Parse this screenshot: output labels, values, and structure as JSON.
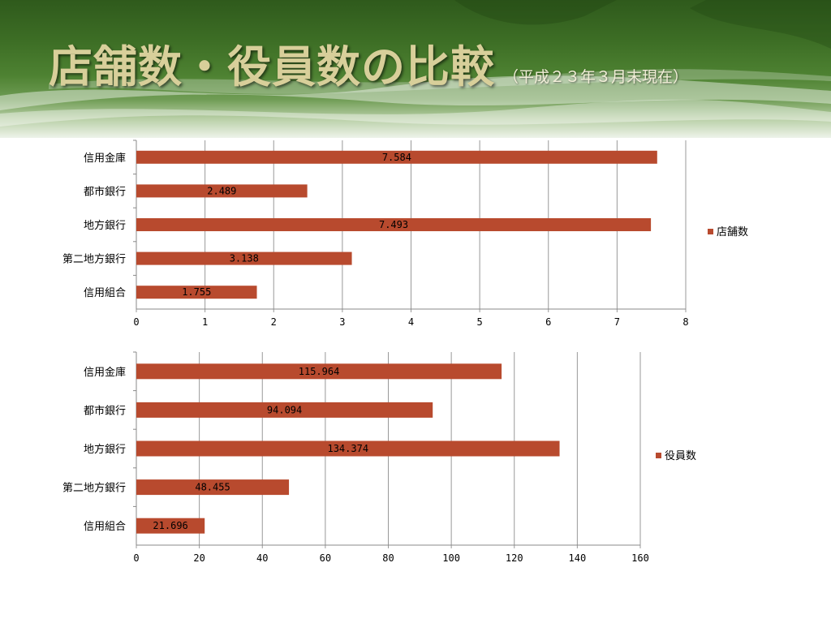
{
  "header": {
    "title": "店舗数・役員数の比較",
    "subtitle": "（平成２３年３月末現在）"
  },
  "chart_data": [
    {
      "type": "bar",
      "orientation": "horizontal",
      "categories": [
        "信用金庫",
        "都市銀行",
        "地方銀行",
        "第二地方銀行",
        "信用組合"
      ],
      "series": [
        {
          "name": "店舗数",
          "values": [
            7.584,
            2.489,
            7.493,
            3.138,
            1.755
          ],
          "labels": [
            "7.584",
            "2.489",
            "7.493",
            "3.138",
            "1.755"
          ]
        }
      ],
      "xlim": [
        0,
        8
      ],
      "ticks": [
        "0",
        "1",
        "2",
        "3",
        "4",
        "5",
        "6",
        "7",
        "8"
      ],
      "grid": "vertical",
      "legend": "right",
      "color": "#b84a2e"
    },
    {
      "type": "bar",
      "orientation": "horizontal",
      "categories": [
        "信用金庫",
        "都市銀行",
        "地方銀行",
        "第二地方銀行",
        "信用組合"
      ],
      "series": [
        {
          "name": "役員数",
          "values": [
            115.964,
            94.094,
            134.374,
            48.455,
            21.696
          ],
          "labels": [
            "115.964",
            "94.094",
            "134.374",
            "48.455",
            "21.696"
          ]
        }
      ],
      "xlim": [
        0,
        160
      ],
      "ticks": [
        "0",
        "20",
        "40",
        "60",
        "80",
        "100",
        "120",
        "140",
        "160"
      ],
      "grid": "vertical",
      "legend": "right",
      "color": "#b84a2e"
    }
  ]
}
